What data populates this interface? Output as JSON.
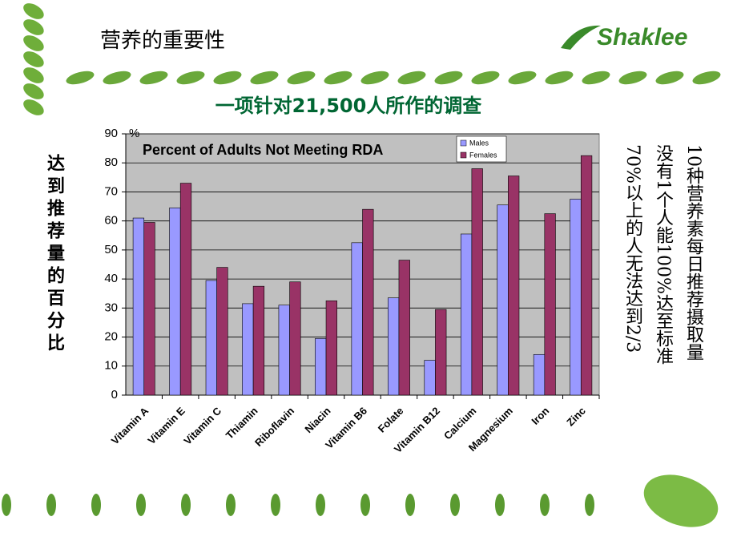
{
  "header": {
    "title": "营养的重要性",
    "logo": "Shaklee"
  },
  "subtitle": "一项针对21,500人所作的调查",
  "y_axis_note": "达到推荐量的百分比",
  "side_note": {
    "lines": [
      "10种营养素每日推荐摄取量",
      "没有1个人能100%达至标准",
      "70%以上的人无法达到2/3"
    ]
  },
  "chart_data": {
    "type": "bar",
    "title": "Percent of Adults Not Meeting RDA",
    "y_unit": "%",
    "categories": [
      "Vitamin A",
      "Vitamin E",
      "Vitamin C",
      "Thiamin",
      "Riboflavin",
      "Niacin",
      "Vitamin B6",
      "Folate",
      "Vitamin B12",
      "Calcium",
      "Magnesium",
      "Iron",
      "Zinc"
    ],
    "series": [
      {
        "name": "Males",
        "color": "#9999ff",
        "values": [
          61,
          64.5,
          39.5,
          31.5,
          31,
          19.5,
          52.5,
          33.5,
          12,
          55.5,
          65.5,
          14,
          67.5
        ]
      },
      {
        "name": "Females",
        "color": "#993366",
        "values": [
          59.5,
          73,
          44,
          37.5,
          39,
          32.5,
          64,
          46.5,
          29.5,
          78,
          75.5,
          62.5,
          82.5
        ]
      }
    ],
    "ylim": [
      0,
      90
    ],
    "yticks": [
      0,
      10,
      20,
      30,
      40,
      50,
      60,
      70,
      80,
      90
    ],
    "grid": true,
    "legend": "top-right"
  }
}
